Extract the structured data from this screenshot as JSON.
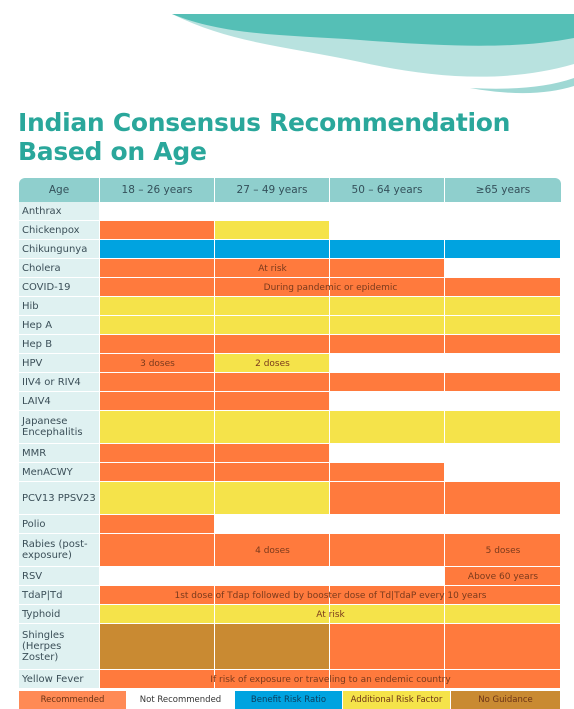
{
  "title": {
    "line1": "Indian Consensus Recommendation",
    "line2": "Based on Age"
  },
  "colors": {
    "R": "#ff7a3d",
    "N": "#ffffff",
    "B": "#00a3e0",
    "A": "#f5e34a",
    "G": "#c98a32"
  },
  "headers": [
    "Age",
    "18 – 26 years",
    "27 – 49 years",
    "50 – 64 years",
    "≥65 years"
  ],
  "rows": [
    {
      "name": "Anthrax",
      "cells": [
        "N",
        "N",
        "N",
        "N"
      ],
      "notes": []
    },
    {
      "name": "Chickenpox",
      "cells": [
        "R",
        "A",
        "N",
        "N"
      ],
      "notes": []
    },
    {
      "name": "Chikungunya",
      "cells": [
        "B",
        "B",
        "B",
        "B"
      ],
      "notes": []
    },
    {
      "name": "Cholera",
      "cells": [
        "R",
        "R",
        "R",
        "N"
      ],
      "notes": [
        {
          "span": [
            0,
            3
          ],
          "text": "At risk"
        }
      ]
    },
    {
      "name": "COVID-19",
      "cells": [
        "R",
        "R",
        "R",
        "R"
      ],
      "notes": [
        {
          "span": [
            0,
            4
          ],
          "text": "During pandemic or epidemic"
        }
      ]
    },
    {
      "name": "Hib",
      "cells": [
        "A",
        "A",
        "A",
        "A"
      ],
      "notes": []
    },
    {
      "name": "Hep A",
      "cells": [
        "A",
        "A",
        "A",
        "A"
      ],
      "notes": []
    },
    {
      "name": "Hep B",
      "cells": [
        "R",
        "R",
        "R",
        "R"
      ],
      "notes": []
    },
    {
      "name": "HPV",
      "cells": [
        "R",
        "A",
        "N",
        "N"
      ],
      "notes": [
        {
          "span": [
            0,
            1
          ],
          "text": "3 doses"
        },
        {
          "span": [
            1,
            2
          ],
          "text": "2 doses"
        }
      ]
    },
    {
      "name": "IIV4 or RIV4",
      "cells": [
        "R",
        "R",
        "R",
        "R"
      ],
      "notes": []
    },
    {
      "name": "LAIV4",
      "cells": [
        "R",
        "R",
        "N",
        "N"
      ],
      "notes": []
    },
    {
      "name": "Japanese Encephalitis",
      "cells": [
        "A",
        "A",
        "A",
        "A"
      ],
      "notes": []
    },
    {
      "name": "MMR",
      "cells": [
        "R",
        "R",
        "N",
        "N"
      ],
      "notes": []
    },
    {
      "name": "MenACWY",
      "cells": [
        "R",
        "R",
        "R",
        "N"
      ],
      "notes": []
    },
    {
      "name": "PCV13 PPSV23",
      "cells": [
        "A",
        "A",
        "R",
        "R"
      ],
      "notes": []
    },
    {
      "name": "Polio",
      "cells": [
        "R",
        "N",
        "N",
        "N"
      ],
      "notes": []
    },
    {
      "name": "Rabies (post-exposure)",
      "cells": [
        "R",
        "R",
        "R",
        "R"
      ],
      "notes": [
        {
          "span": [
            0,
            3
          ],
          "text": "4 doses"
        },
        {
          "span": [
            3,
            4
          ],
          "text": "5 doses"
        }
      ]
    },
    {
      "name": "RSV",
      "cells": [
        "N",
        "N",
        "N",
        "R"
      ],
      "notes": [
        {
          "span": [
            3,
            4
          ],
          "text": "Above 60 years"
        }
      ]
    },
    {
      "name": "TdaP|Td",
      "cells": [
        "R",
        "R",
        "R",
        "R"
      ],
      "notes": [
        {
          "span": [
            0,
            4
          ],
          "text": "1st dose of Tdap followed by booster dose of Td|TdaP every 10 years"
        }
      ]
    },
    {
      "name": "Typhoid",
      "cells": [
        "A",
        "A",
        "A",
        "A"
      ],
      "notes": [
        {
          "span": [
            0,
            4
          ],
          "text": "At risk"
        }
      ]
    },
    {
      "name": "Shingles (Herpes Zoster)",
      "cells": [
        "G",
        "G",
        "R",
        "R"
      ],
      "notes": []
    },
    {
      "name": "Yellow Fever",
      "cells": [
        "R",
        "R",
        "R",
        "R"
      ],
      "notes": [
        {
          "span": [
            0,
            4
          ],
          "text": "If risk of exposure or traveling to an endemic country"
        }
      ]
    }
  ],
  "legend": [
    {
      "key": "R",
      "label": "Recommended"
    },
    {
      "key": "N",
      "label": "Not Recommended"
    },
    {
      "key": "B",
      "label": "Benefit Risk Ratio"
    },
    {
      "key": "A",
      "label": "Additional Risk Factor"
    },
    {
      "key": "G",
      "label": "No Guidance"
    }
  ]
}
